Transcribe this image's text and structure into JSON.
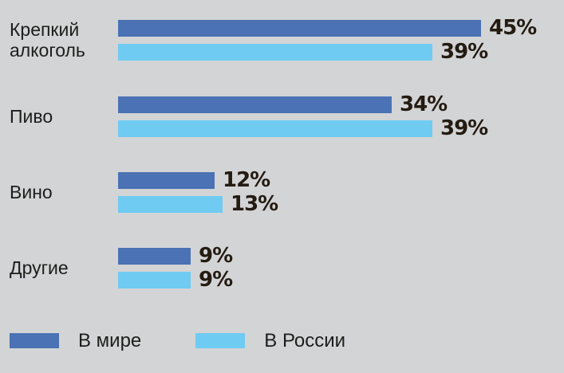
{
  "chart_data": {
    "type": "bar",
    "orientation": "horizontal",
    "title": "",
    "categories": [
      "Крепкий алкоголь",
      "Пиво",
      "Вино",
      "Другие"
    ],
    "series": [
      {
        "name": "В мире",
        "color": "#4a72b4",
        "values": [
          45,
          34,
          12,
          9
        ]
      },
      {
        "name": "В России",
        "color": "#6fcbf2",
        "values": [
          39,
          39,
          13,
          9
        ]
      }
    ],
    "value_suffix": "%",
    "xlim": [
      0,
      50
    ],
    "grid": false,
    "legend_position": "bottom"
  },
  "colors": {
    "background": "#d3d4d6",
    "world_bar": "#4a72b4",
    "russia_bar": "#6fcbf2",
    "value_text": "#241b11",
    "label_text": "#1d1d1b"
  }
}
